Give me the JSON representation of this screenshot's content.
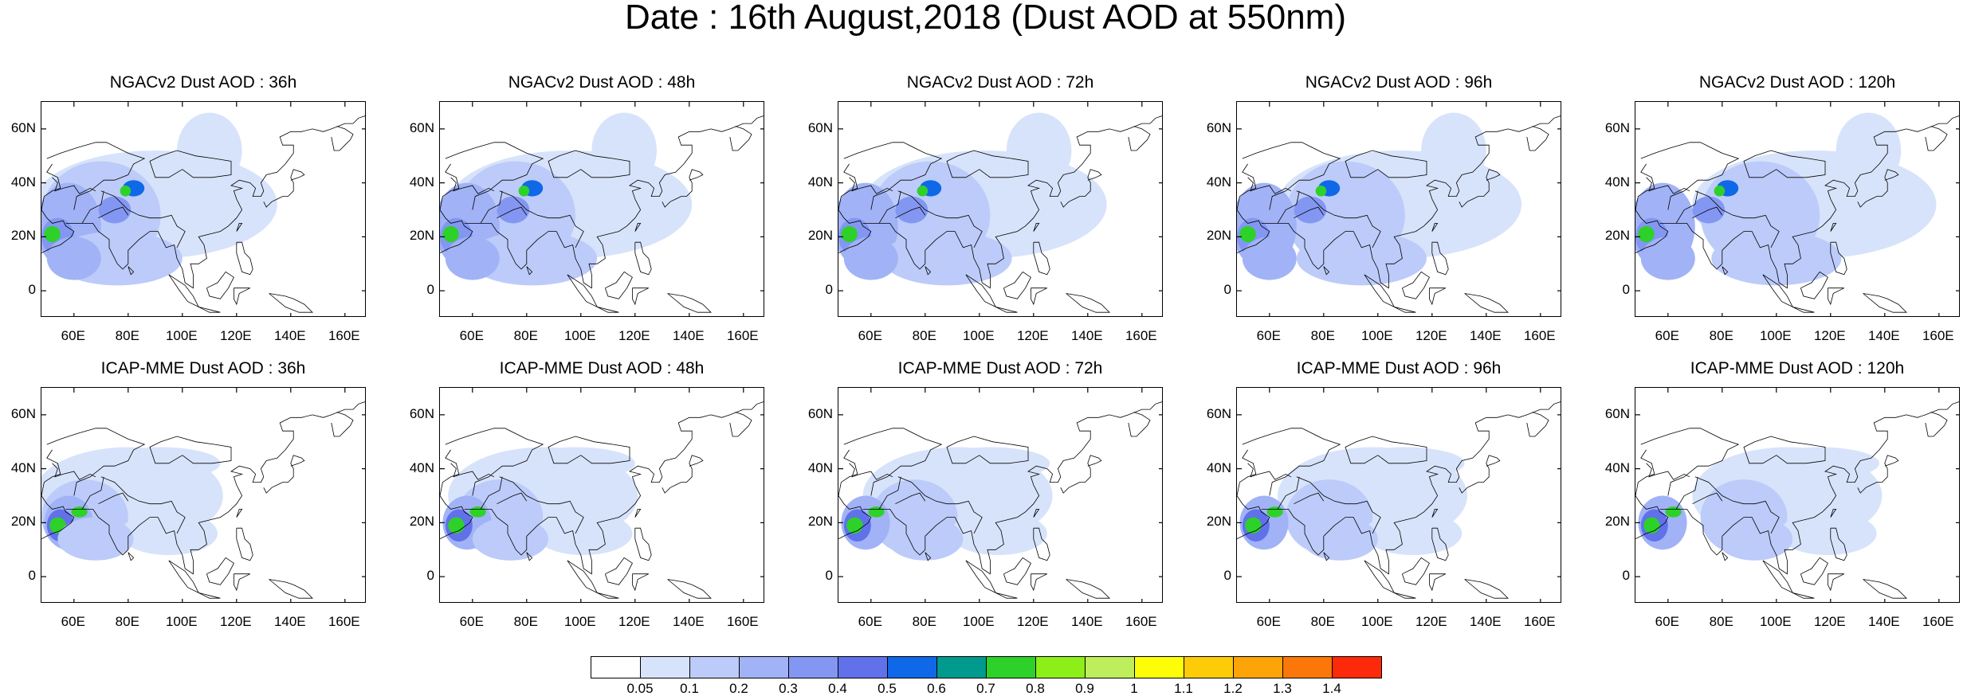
{
  "title": "Date : 16th August,2018 (Dust AOD at 550nm)",
  "panels": [
    {
      "title": "NGACv2 Dust AOD : 36h",
      "model": "NGACv2",
      "lead": "36h"
    },
    {
      "title": "NGACv2 Dust AOD : 48h",
      "model": "NGACv2",
      "lead": "48h"
    },
    {
      "title": "NGACv2 Dust AOD : 72h",
      "model": "NGACv2",
      "lead": "72h"
    },
    {
      "title": "NGACv2 Dust AOD : 96h",
      "model": "NGACv2",
      "lead": "96h"
    },
    {
      "title": "NGACv2 Dust AOD : 120h",
      "model": "NGACv2",
      "lead": "120h"
    },
    {
      "title": "ICAP-MME Dust AOD : 36h",
      "model": "ICAP-MME",
      "lead": "36h"
    },
    {
      "title": "ICAP-MME Dust AOD : 48h",
      "model": "ICAP-MME",
      "lead": "48h"
    },
    {
      "title": "ICAP-MME Dust AOD : 72h",
      "model": "ICAP-MME",
      "lead": "72h"
    },
    {
      "title": "ICAP-MME Dust AOD : 96h",
      "model": "ICAP-MME",
      "lead": "96h"
    },
    {
      "title": "ICAP-MME Dust AOD : 120h",
      "model": "ICAP-MME",
      "lead": "120h"
    }
  ],
  "axes": {
    "lon_ticks": [
      "60E",
      "80E",
      "100E",
      "120E",
      "140E",
      "160E"
    ],
    "lat_ticks": [
      "60N",
      "40N",
      "20N",
      "0"
    ],
    "lon_values": [
      60,
      80,
      100,
      120,
      140,
      160
    ],
    "lat_values": [
      60,
      40,
      20,
      0
    ],
    "lon_range": [
      48,
      168
    ],
    "lat_range": [
      -10,
      70
    ]
  },
  "colorbar": {
    "labels": [
      "0.05",
      "0.1",
      "0.2",
      "0.3",
      "0.4",
      "0.5",
      "0.6",
      "0.7",
      "0.8",
      "0.9",
      "1",
      "1.1",
      "1.2",
      "1.3",
      "1.4"
    ],
    "colors": [
      "#ffffff",
      "#d7e3fb",
      "#bccbf9",
      "#a1b3f6",
      "#8397f2",
      "#6171ea",
      "#0f68e8",
      "#009a8e",
      "#2dd12a",
      "#8cef19",
      "#bfee5c",
      "#fdfd08",
      "#fdcb07",
      "#fca408",
      "#fc7709",
      "#fc2a0b"
    ]
  }
}
